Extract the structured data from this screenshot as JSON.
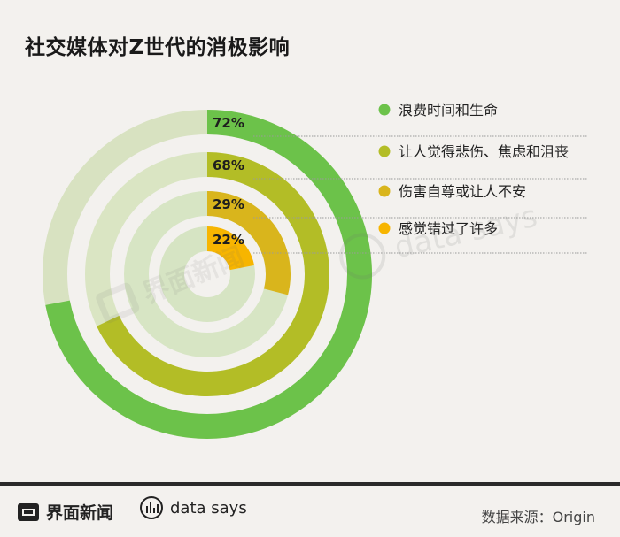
{
  "title": "社交媒体对Z世代的消极影响",
  "chart_data": {
    "type": "radial-bar",
    "series": [
      {
        "name": "浪费时间和生命",
        "value": 72,
        "label": "72%",
        "color": "#6cc24a",
        "track": "#d8e2c1"
      },
      {
        "name": "让人觉得悲伤、焦虑和沮丧",
        "value": 68,
        "label": "68%",
        "color": "#b3bd26",
        "track": "#dae5c3"
      },
      {
        "name": "伤害自尊或让人不安",
        "value": 29,
        "label": "29%",
        "color": "#d9b51c",
        "track": "#d7e5c4"
      },
      {
        "name": "感觉错过了许多",
        "value": 22,
        "label": "22%",
        "color": "#f7b500",
        "track": "#d6e4c3"
      }
    ],
    "max": 100,
    "legend_position": "right"
  },
  "watermark": {
    "brand": "界面新闻",
    "ds": "data says"
  },
  "footer": {
    "brand": "界面新闻",
    "ds": "data says",
    "source": "数据来源：Origin"
  }
}
